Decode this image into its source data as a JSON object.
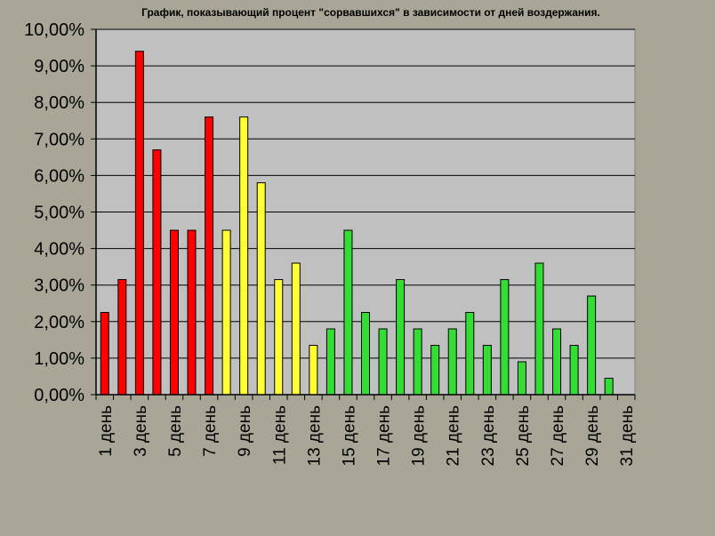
{
  "chart_data": {
    "type": "bar",
    "title": "График, показывающий процент \"сорвавшихся\" в зависимости от дней воздержания.",
    "xlabel": "",
    "ylabel": "",
    "ylim": [
      0,
      10
    ],
    "y_ticks": [
      "0,00%",
      "1,00%",
      "2,00%",
      "3,00%",
      "4,00%",
      "5,00%",
      "6,00%",
      "7,00%",
      "8,00%",
      "9,00%",
      "10,00%"
    ],
    "grid": true,
    "legend": "none",
    "categories": [
      "1 день",
      "2 день",
      "3 день",
      "4 день",
      "5 день",
      "6 день",
      "7 день",
      "8 день",
      "9 день",
      "10 день",
      "11 день",
      "12 день",
      "13 день",
      "14 день",
      "15 день",
      "16 день",
      "17 день",
      "18 день",
      "19 день",
      "20 день",
      "21 день",
      "22 день",
      "23 день",
      "24 день",
      "25 день",
      "26 день",
      "27 день",
      "28 день",
      "29 день",
      "30 день",
      "31 день"
    ],
    "visible_tick_labels": [
      "1 день",
      "3 день",
      "5 день",
      "7 день",
      "9 день",
      "11 день",
      "13 день",
      "15 день",
      "17 день",
      "19 день",
      "21 день",
      "23 день",
      "25 день",
      "27 день",
      "29 день",
      "31 день"
    ],
    "values": [
      2.25,
      3.15,
      9.4,
      6.7,
      4.5,
      4.5,
      7.6,
      4.5,
      7.6,
      5.8,
      3.15,
      3.6,
      1.35,
      1.8,
      4.5,
      2.25,
      1.8,
      3.15,
      1.8,
      1.35,
      1.8,
      2.25,
      1.35,
      3.15,
      0.9,
      3.6,
      1.8,
      1.35,
      2.7,
      0.45,
      0
    ],
    "bar_colors": [
      "#ff0000",
      "#ff0000",
      "#ff0000",
      "#ff0000",
      "#ff0000",
      "#ff0000",
      "#ff0000",
      "#ffff33",
      "#ffff33",
      "#ffff33",
      "#ffff33",
      "#ffff33",
      "#ffff33",
      "#33dd33",
      "#33dd33",
      "#33dd33",
      "#33dd33",
      "#33dd33",
      "#33dd33",
      "#33dd33",
      "#33dd33",
      "#33dd33",
      "#33dd33",
      "#33dd33",
      "#33dd33",
      "#33dd33",
      "#33dd33",
      "#33dd33",
      "#33dd33",
      "#33dd33",
      "#33dd33"
    ],
    "colors": {
      "page_background": "#a9a698",
      "plot_background": "#c0c0c0",
      "gridline": "#000000"
    }
  }
}
